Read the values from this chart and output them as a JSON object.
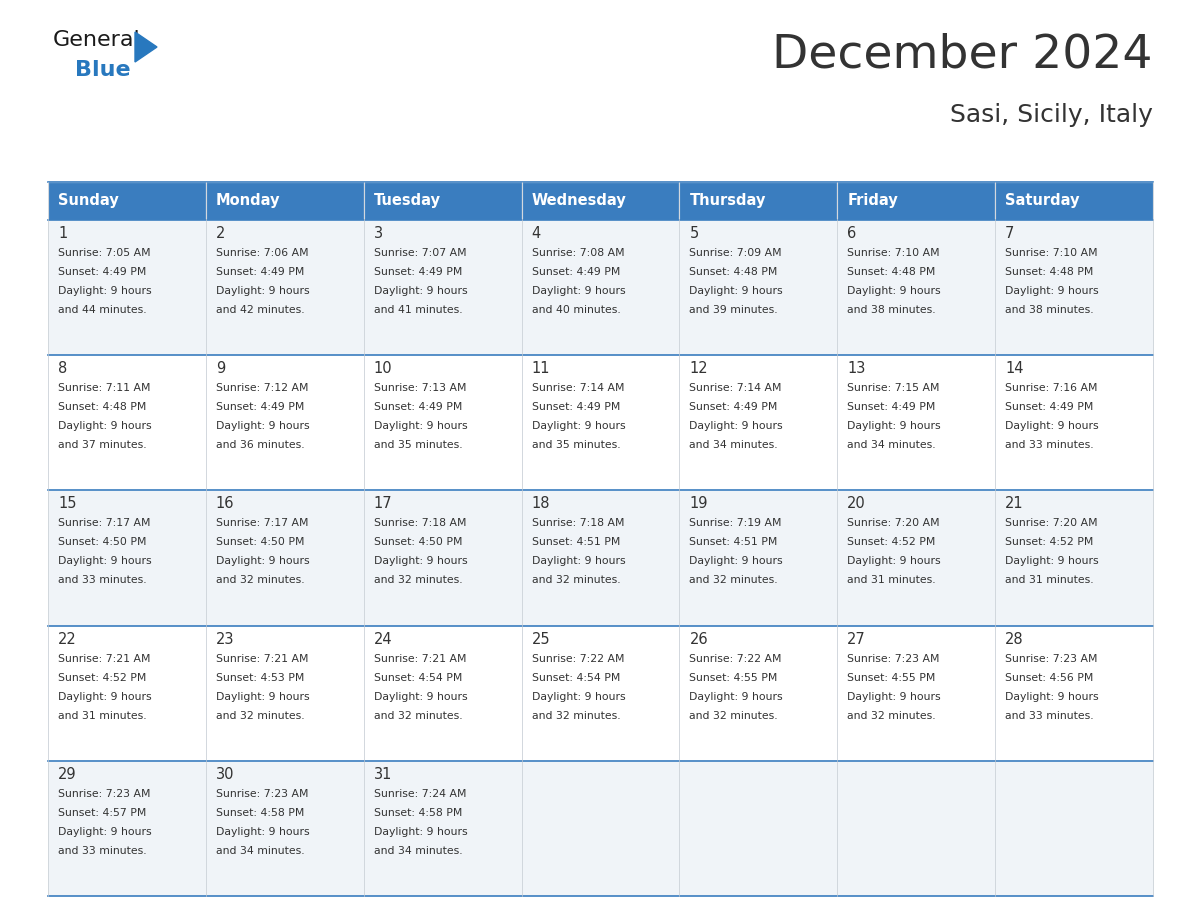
{
  "title": "December 2024",
  "subtitle": "Sasi, Sicily, Italy",
  "days_of_week": [
    "Sunday",
    "Monday",
    "Tuesday",
    "Wednesday",
    "Thursday",
    "Friday",
    "Saturday"
  ],
  "header_bg": "#3a7dbf",
  "header_text_color": "#ffffff",
  "row_bg_even": "#f0f4f8",
  "row_bg_odd": "#ffffff",
  "row_separator_color": "#3a7dbf",
  "cell_border_color": "#c0c8d0",
  "text_color": "#333333",
  "calendar_data": [
    [
      {
        "day": 1,
        "sunrise": "7:05 AM",
        "sunset": "4:49 PM",
        "daylight": "9 hours and 44 minutes."
      },
      {
        "day": 2,
        "sunrise": "7:06 AM",
        "sunset": "4:49 PM",
        "daylight": "9 hours and 42 minutes."
      },
      {
        "day": 3,
        "sunrise": "7:07 AM",
        "sunset": "4:49 PM",
        "daylight": "9 hours and 41 minutes."
      },
      {
        "day": 4,
        "sunrise": "7:08 AM",
        "sunset": "4:49 PM",
        "daylight": "9 hours and 40 minutes."
      },
      {
        "day": 5,
        "sunrise": "7:09 AM",
        "sunset": "4:48 PM",
        "daylight": "9 hours and 39 minutes."
      },
      {
        "day": 6,
        "sunrise": "7:10 AM",
        "sunset": "4:48 PM",
        "daylight": "9 hours and 38 minutes."
      },
      {
        "day": 7,
        "sunrise": "7:10 AM",
        "sunset": "4:48 PM",
        "daylight": "9 hours and 38 minutes."
      }
    ],
    [
      {
        "day": 8,
        "sunrise": "7:11 AM",
        "sunset": "4:48 PM",
        "daylight": "9 hours and 37 minutes."
      },
      {
        "day": 9,
        "sunrise": "7:12 AM",
        "sunset": "4:49 PM",
        "daylight": "9 hours and 36 minutes."
      },
      {
        "day": 10,
        "sunrise": "7:13 AM",
        "sunset": "4:49 PM",
        "daylight": "9 hours and 35 minutes."
      },
      {
        "day": 11,
        "sunrise": "7:14 AM",
        "sunset": "4:49 PM",
        "daylight": "9 hours and 35 minutes."
      },
      {
        "day": 12,
        "sunrise": "7:14 AM",
        "sunset": "4:49 PM",
        "daylight": "9 hours and 34 minutes."
      },
      {
        "day": 13,
        "sunrise": "7:15 AM",
        "sunset": "4:49 PM",
        "daylight": "9 hours and 34 minutes."
      },
      {
        "day": 14,
        "sunrise": "7:16 AM",
        "sunset": "4:49 PM",
        "daylight": "9 hours and 33 minutes."
      }
    ],
    [
      {
        "day": 15,
        "sunrise": "7:17 AM",
        "sunset": "4:50 PM",
        "daylight": "9 hours and 33 minutes."
      },
      {
        "day": 16,
        "sunrise": "7:17 AM",
        "sunset": "4:50 PM",
        "daylight": "9 hours and 32 minutes."
      },
      {
        "day": 17,
        "sunrise": "7:18 AM",
        "sunset": "4:50 PM",
        "daylight": "9 hours and 32 minutes."
      },
      {
        "day": 18,
        "sunrise": "7:18 AM",
        "sunset": "4:51 PM",
        "daylight": "9 hours and 32 minutes."
      },
      {
        "day": 19,
        "sunrise": "7:19 AM",
        "sunset": "4:51 PM",
        "daylight": "9 hours and 32 minutes."
      },
      {
        "day": 20,
        "sunrise": "7:20 AM",
        "sunset": "4:52 PM",
        "daylight": "9 hours and 31 minutes."
      },
      {
        "day": 21,
        "sunrise": "7:20 AM",
        "sunset": "4:52 PM",
        "daylight": "9 hours and 31 minutes."
      }
    ],
    [
      {
        "day": 22,
        "sunrise": "7:21 AM",
        "sunset": "4:52 PM",
        "daylight": "9 hours and 31 minutes."
      },
      {
        "day": 23,
        "sunrise": "7:21 AM",
        "sunset": "4:53 PM",
        "daylight": "9 hours and 32 minutes."
      },
      {
        "day": 24,
        "sunrise": "7:21 AM",
        "sunset": "4:54 PM",
        "daylight": "9 hours and 32 minutes."
      },
      {
        "day": 25,
        "sunrise": "7:22 AM",
        "sunset": "4:54 PM",
        "daylight": "9 hours and 32 minutes."
      },
      {
        "day": 26,
        "sunrise": "7:22 AM",
        "sunset": "4:55 PM",
        "daylight": "9 hours and 32 minutes."
      },
      {
        "day": 27,
        "sunrise": "7:23 AM",
        "sunset": "4:55 PM",
        "daylight": "9 hours and 32 minutes."
      },
      {
        "day": 28,
        "sunrise": "7:23 AM",
        "sunset": "4:56 PM",
        "daylight": "9 hours and 33 minutes."
      }
    ],
    [
      {
        "day": 29,
        "sunrise": "7:23 AM",
        "sunset": "4:57 PM",
        "daylight": "9 hours and 33 minutes."
      },
      {
        "day": 30,
        "sunrise": "7:23 AM",
        "sunset": "4:58 PM",
        "daylight": "9 hours and 34 minutes."
      },
      {
        "day": 31,
        "sunrise": "7:24 AM",
        "sunset": "4:58 PM",
        "daylight": "9 hours and 34 minutes."
      },
      null,
      null,
      null,
      null
    ]
  ],
  "logo_color_general": "#1a1a1a",
  "logo_color_blue": "#2878be",
  "logo_triangle_color": "#2878be",
  "fig_width": 11.88,
  "fig_height": 9.18,
  "dpi": 100
}
